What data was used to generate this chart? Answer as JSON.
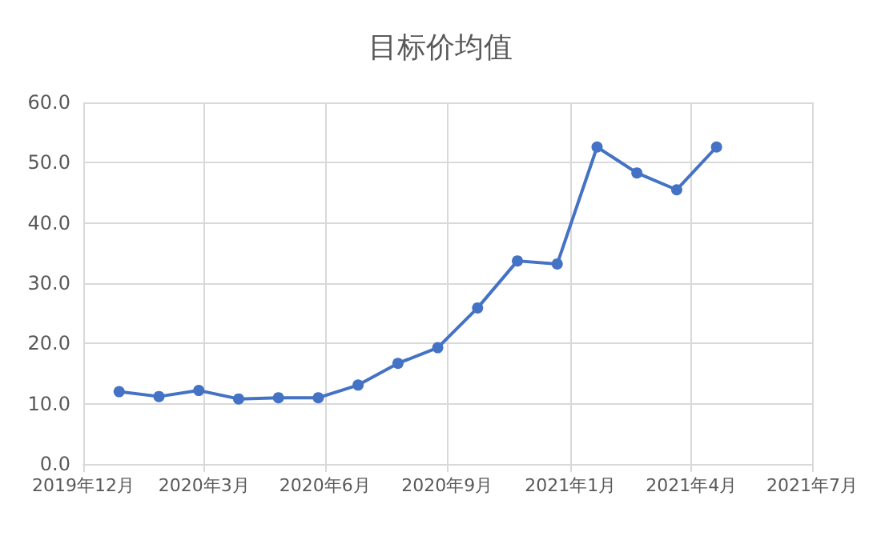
{
  "chart_data": {
    "type": "line",
    "title": "目标价均值",
    "x": [
      "2020-01-27",
      "2020-02-26",
      "2020-03-27",
      "2020-04-26",
      "2020-05-26",
      "2020-06-25",
      "2020-07-25",
      "2020-08-24",
      "2020-09-23",
      "2020-10-23",
      "2020-11-22",
      "2020-12-22",
      "2021-01-21",
      "2021-02-20",
      "2021-03-22",
      "2021-04-21"
    ],
    "series": [
      {
        "color": "#4472c4",
        "values": [
          12.0,
          11.2,
          12.2,
          10.8,
          11.0,
          11.0,
          13.1,
          16.7,
          19.3,
          25.9,
          33.7,
          33.2,
          52.6,
          48.3,
          45.5,
          52.6
        ]
      }
    ],
    "xlim": [
      "2019-12-31",
      "2021-07-02"
    ],
    "xticks": [
      {
        "value": "2019-12-31",
        "label": "2019年12月"
      },
      {
        "value": "2020-03-31",
        "label": "2020年3月"
      },
      {
        "value": "2020-06-30",
        "label": "2020年6月"
      },
      {
        "value": "2020-09-30",
        "label": "2020年9月"
      },
      {
        "value": "2021-01-01",
        "label": "2021年1月"
      },
      {
        "value": "2021-04-02",
        "label": "2021年4月"
      },
      {
        "value": "2021-07-02",
        "label": "2021年7月"
      }
    ],
    "ylim": [
      0,
      60
    ],
    "yticks": [
      {
        "value": 0,
        "label": "0.0"
      },
      {
        "value": 10,
        "label": "10.0"
      },
      {
        "value": 20,
        "label": "20.0"
      },
      {
        "value": 30,
        "label": "30.0"
      },
      {
        "value": 40,
        "label": "40.0"
      },
      {
        "value": 50,
        "label": "50.0"
      },
      {
        "value": 60,
        "label": "60.0"
      }
    ],
    "grid": true,
    "marker": "circle",
    "line_style": "solid"
  }
}
